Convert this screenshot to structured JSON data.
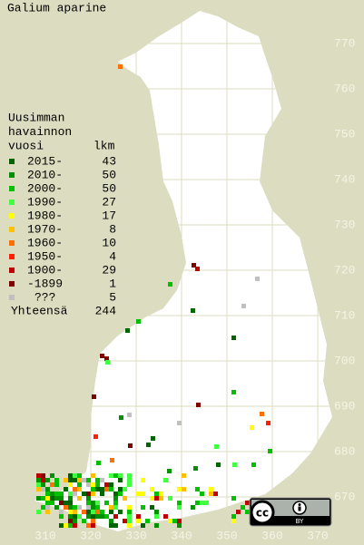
{
  "title": "Galium aparine",
  "legend": {
    "heading": [
      "Uusimman",
      "havainnon",
      "vuosi"
    ],
    "count_heading": "lkm",
    "items": [
      {
        "label": "2015-",
        "count": 43,
        "color": "#006400"
      },
      {
        "label": "2010-",
        "count": 50,
        "color": "#009000"
      },
      {
        "label": "2000-",
        "count": 50,
        "color": "#00c000"
      },
      {
        "label": "1990-",
        "count": 27,
        "color": "#40ff40"
      },
      {
        "label": "1980-",
        "count": 17,
        "color": "#ffff00"
      },
      {
        "label": "1970-",
        "count": 8,
        "color": "#ffc000"
      },
      {
        "label": "1960-",
        "count": 10,
        "color": "#ff7000"
      },
      {
        "label": "1950-",
        "count": 4,
        "color": "#ff2000"
      },
      {
        "label": "1900-",
        "count": 29,
        "color": "#c00000"
      },
      {
        "label": "-1899",
        "count": 1,
        "color": "#800000"
      },
      {
        "label": "???",
        "count": 5,
        "color": "#c0c0c0"
      }
    ],
    "total_label": "Yhteensä",
    "total": 244
  },
  "grid": {
    "northing": [
      770,
      760,
      750,
      740,
      730,
      720,
      710,
      700,
      690,
      680,
      670
    ],
    "easting": [
      310,
      320,
      330,
      340,
      350,
      360,
      370
    ]
  },
  "license": {
    "cc": "cc",
    "by": "BY"
  }
}
